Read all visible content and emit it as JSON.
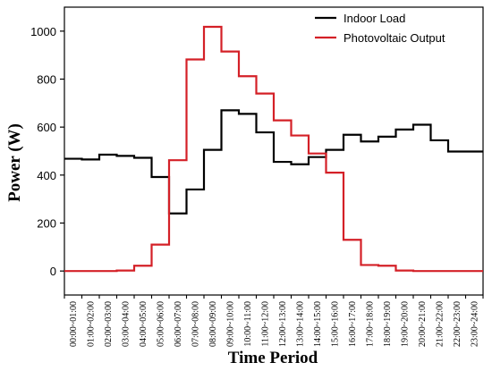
{
  "chart_data": {
    "type": "line",
    "title": "",
    "xlabel": "Time Period",
    "ylabel": "Power (W)",
    "ylim": [
      -100,
      1100
    ],
    "yticks": [
      0,
      200,
      400,
      600,
      800,
      1000
    ],
    "step": true,
    "grid": false,
    "legend_position": "top-right",
    "categories": [
      "00:00~01:00",
      "01:00~02:00",
      "02:00~03:00",
      "03:00~04:00",
      "04:00~05:00",
      "05:00~06:00",
      "06:00~07:00",
      "07:00~08:00",
      "08:00~09:00",
      "09:00~10:00",
      "10:00~11:00",
      "11:00~12:00",
      "12:00~13:00",
      "13:00~14:00",
      "14:00~15:00",
      "15:00~16:00",
      "16:00~17:00",
      "17:00~18:00",
      "18:00~19:00",
      "19:00~20:00",
      "20:00~21:00",
      "21:00~22:00",
      "22:00~23:00",
      "23:00~24:00"
    ],
    "series": [
      {
        "name": "Indoor Load",
        "color": "#000000",
        "values": [
          468,
          465,
          485,
          480,
          472,
          392,
          240,
          340,
          505,
          670,
          655,
          578,
          455,
          445,
          475,
          505,
          568,
          540,
          560,
          590,
          610,
          545,
          498,
          498
        ]
      },
      {
        "name": "Photovoltaic Output",
        "color": "#d42027",
        "values": [
          0,
          0,
          0,
          2,
          22,
          110,
          462,
          882,
          1018,
          915,
          812,
          740,
          628,
          565,
          490,
          410,
          130,
          25,
          22,
          2,
          0,
          0,
          0,
          0
        ]
      }
    ]
  }
}
